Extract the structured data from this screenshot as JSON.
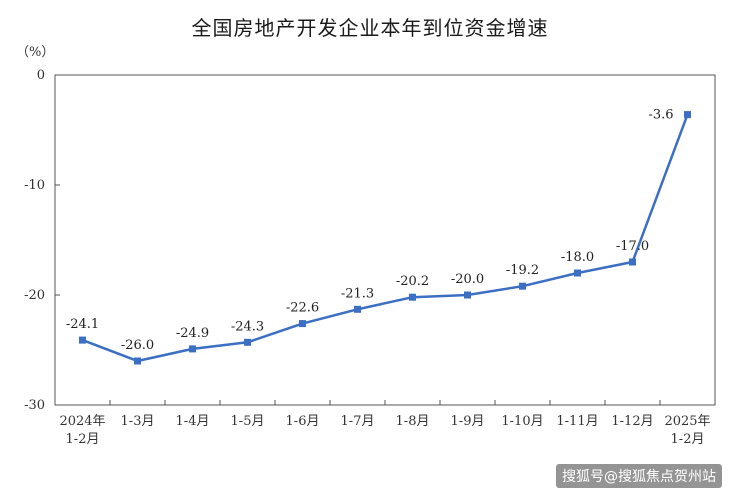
{
  "chart_data": {
    "type": "line",
    "title": "全国房地产开发企业本年到位资金增速",
    "unit_label": "（%）",
    "categories": [
      [
        "2024年",
        "1-2月"
      ],
      [
        "1-3月"
      ],
      [
        "1-4月"
      ],
      [
        "1-5月"
      ],
      [
        "1-6月"
      ],
      [
        "1-7月"
      ],
      [
        "1-8月"
      ],
      [
        "1-9月"
      ],
      [
        "1-10月"
      ],
      [
        "1-11月"
      ],
      [
        "1-12月"
      ],
      [
        "2025年",
        "1-2月"
      ]
    ],
    "values": [
      -24.1,
      -26.0,
      -24.9,
      -24.3,
      -22.6,
      -21.3,
      -20.2,
      -20.0,
      -19.2,
      -18.0,
      -17.0,
      -3.6
    ],
    "value_labels": [
      "-24.1",
      "-26.0",
      "-24.9",
      "-24.3",
      "-22.6",
      "-21.3",
      "-20.2",
      "-20.0",
      "-19.2",
      "-18.0",
      "-17.0",
      "-3.6"
    ],
    "ylim": [
      -30,
      0
    ],
    "yticks": [
      0,
      -10,
      -20,
      -30
    ],
    "grid": false,
    "line_color": "#3a6fc4"
  },
  "watermark": "搜狐号@搜狐焦点贺州站"
}
